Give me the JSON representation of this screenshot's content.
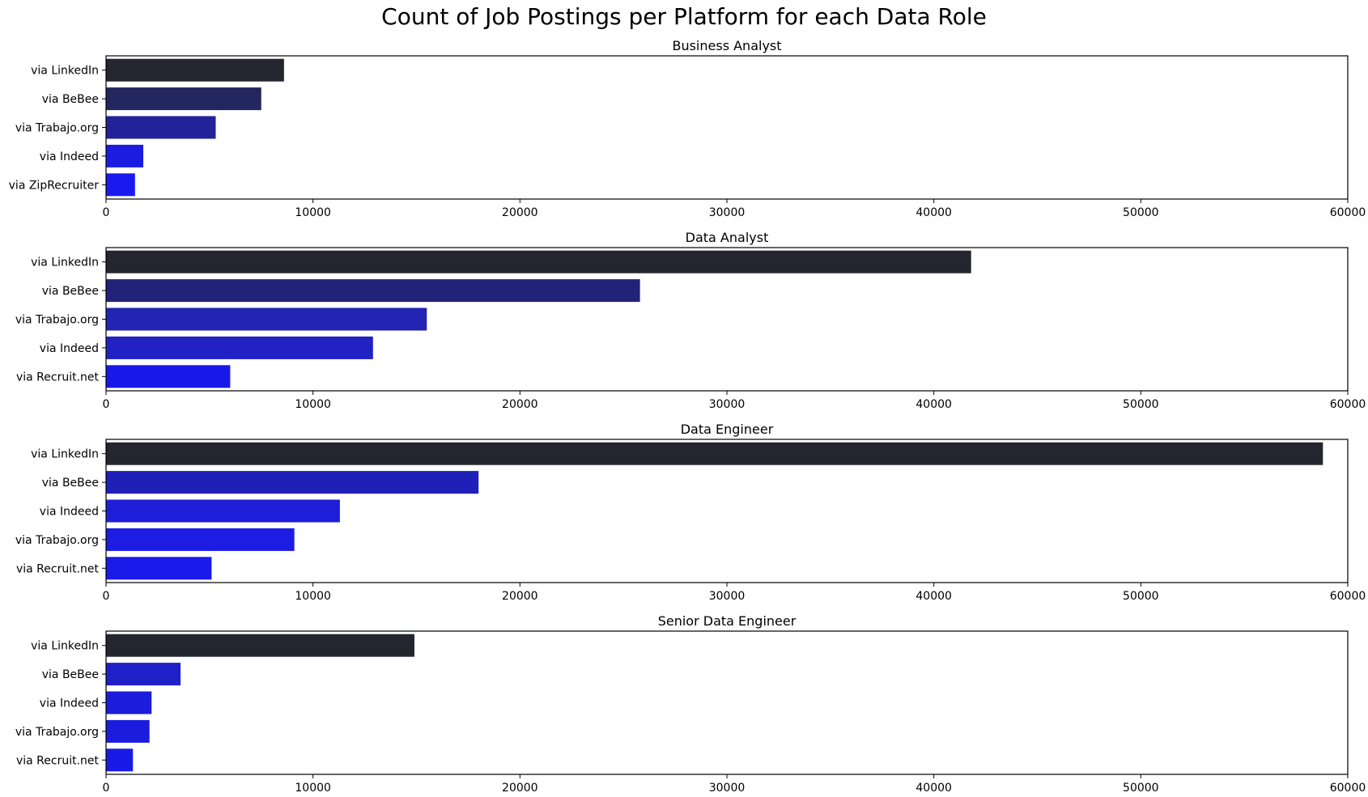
{
  "figure": {
    "title": "Count of Job Postings per Platform for each Data Role"
  },
  "chart_data": [
    {
      "type": "bar",
      "orientation": "horizontal",
      "title": "Business Analyst",
      "categories": [
        "via LinkedIn",
        "via BeBee",
        "via Trabajo.org",
        "via Indeed",
        "via ZipRecruiter"
      ],
      "values": [
        8600,
        7500,
        5300,
        1800,
        1400
      ],
      "colors": [
        "#25252f",
        "#242660",
        "#222398",
        "#1c1ce0",
        "#1a1af0"
      ],
      "xlim": [
        0,
        60000
      ],
      "xticks": [
        "0",
        "10000",
        "20000",
        "30000",
        "40000",
        "50000",
        "60000"
      ],
      "xlabel": "",
      "ylabel": "",
      "grid": false
    },
    {
      "type": "bar",
      "orientation": "horizontal",
      "title": "Data Analyst",
      "categories": [
        "via LinkedIn",
        "via BeBee",
        "via Trabajo.org",
        "via Indeed",
        "via Recruit.net"
      ],
      "values": [
        41800,
        25800,
        15500,
        12900,
        6000
      ],
      "colors": [
        "#25252f",
        "#212278",
        "#2224b4",
        "#2121c4",
        "#1818ea"
      ],
      "xlim": [
        0,
        60000
      ],
      "xticks": [
        "0",
        "10000",
        "20000",
        "30000",
        "40000",
        "50000",
        "60000"
      ],
      "xlabel": "",
      "ylabel": "",
      "grid": false
    },
    {
      "type": "bar",
      "orientation": "horizontal",
      "title": "Data Engineer",
      "categories": [
        "via LinkedIn",
        "via BeBee",
        "via Indeed",
        "via Trabajo.org",
        "via Recruit.net"
      ],
      "values": [
        58800,
        18000,
        11300,
        9100,
        5100
      ],
      "colors": [
        "#25252f",
        "#1f20b8",
        "#1e1ed8",
        "#1c1ce2",
        "#1a1aea"
      ],
      "xlim": [
        0,
        60000
      ],
      "xticks": [
        "0",
        "10000",
        "20000",
        "30000",
        "40000",
        "50000",
        "60000"
      ],
      "xlabel": "",
      "ylabel": "",
      "grid": false
    },
    {
      "type": "bar",
      "orientation": "horizontal",
      "title": "Senior Data Engineer",
      "categories": [
        "via LinkedIn",
        "via BeBee",
        "via Indeed",
        "via Trabajo.org",
        "via Recruit.net"
      ],
      "values": [
        14900,
        3600,
        2200,
        2100,
        1300
      ],
      "colors": [
        "#25252f",
        "#2020c8",
        "#1c1cdc",
        "#1c1cde",
        "#1a1ae8"
      ],
      "xlim": [
        0,
        60000
      ],
      "xticks": [
        "0",
        "10000",
        "20000",
        "30000",
        "40000",
        "50000",
        "60000"
      ],
      "xlabel": "",
      "ylabel": "",
      "grid": false
    }
  ]
}
